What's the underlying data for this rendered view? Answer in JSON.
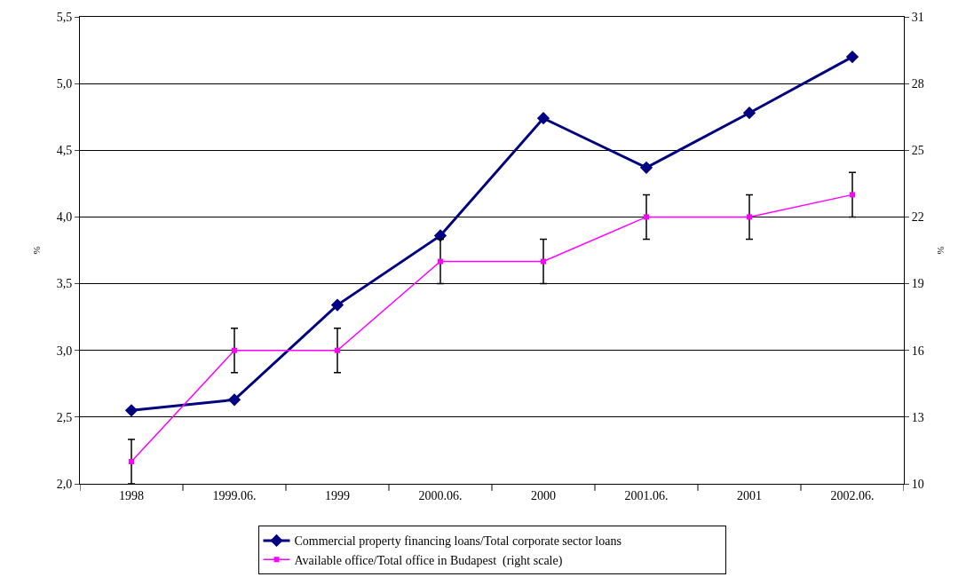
{
  "chart_data": {
    "type": "line",
    "categories": [
      "1998",
      "1999.06.",
      "1999",
      "2000.06.",
      "2000",
      "2001.06.",
      "2001",
      "2002.06."
    ],
    "series": [
      {
        "name": "Commercial property financing loans/Total corporate sector loans",
        "color": "#000080",
        "marker": "diamond",
        "values": [
          2.55,
          2.63,
          3.34,
          3.86,
          4.74,
          4.37,
          4.78,
          5.2
        ]
      },
      {
        "name": "Available office/Total office in Budapest  (right scale)",
        "color": "#ff00ff",
        "marker": "square",
        "axis": "y2",
        "values": [
          11,
          16,
          16,
          20,
          20,
          22,
          22,
          23
        ],
        "errors": [
          1,
          1,
          1,
          1,
          1,
          1,
          1,
          1
        ]
      }
    ],
    "ylabel": "%",
    "y2label": "%",
    "ylim": [
      2.0,
      5.5
    ],
    "yticks": [
      {
        "value": 2.0,
        "label": "2,0"
      },
      {
        "value": 2.5,
        "label": "2,5"
      },
      {
        "value": 3.0,
        "label": "3,0"
      },
      {
        "value": 3.5,
        "label": "3,5"
      },
      {
        "value": 4.0,
        "label": "4,0"
      },
      {
        "value": 4.5,
        "label": "4,5"
      },
      {
        "value": 5.0,
        "label": "5,0"
      },
      {
        "value": 5.5,
        "label": "5,5"
      }
    ],
    "y2lim": [
      10,
      31
    ],
    "y2ticks": [
      10,
      13,
      16,
      19,
      22,
      25,
      28,
      31
    ],
    "grid": "y",
    "legend": "bottom",
    "line_style": "solid"
  }
}
